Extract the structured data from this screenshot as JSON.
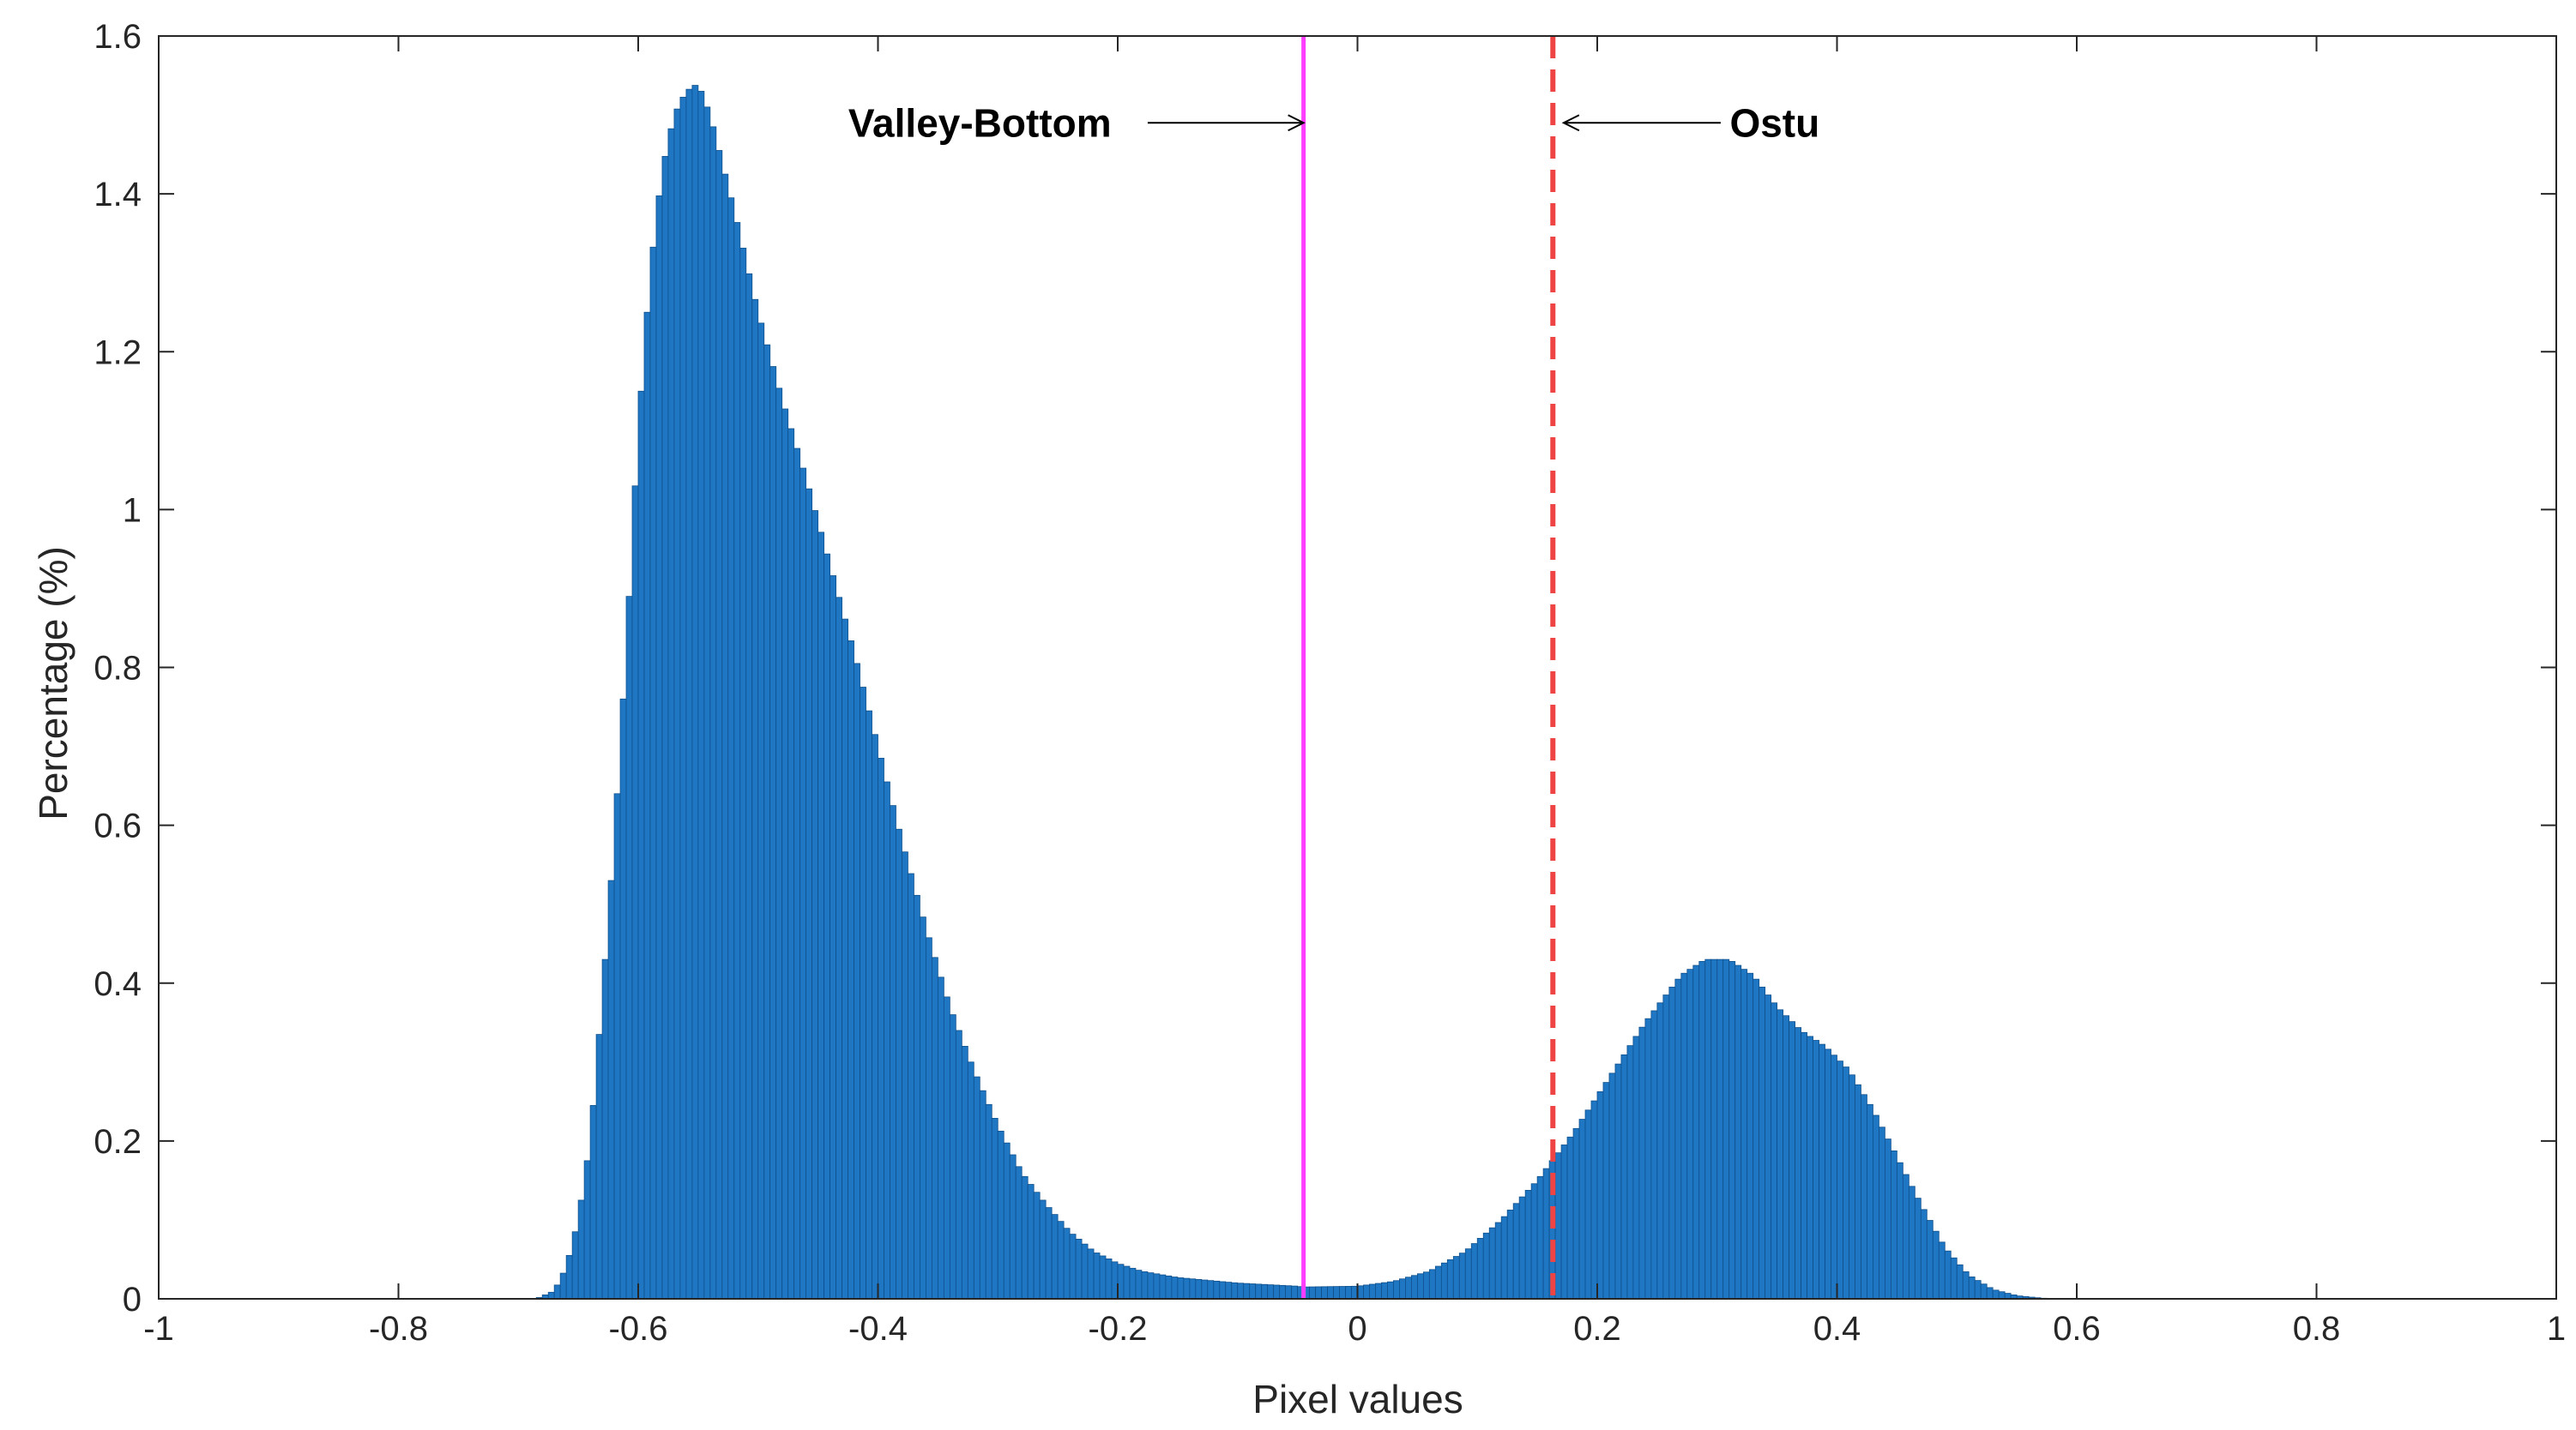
{
  "chart_data": {
    "type": "bar",
    "title": "",
    "xlabel": "Pixel values",
    "ylabel": "Percentage (%)",
    "xlim": [
      -1,
      1
    ],
    "ylim": [
      0,
      1.6
    ],
    "xticks": [
      -1,
      -0.8,
      -0.6,
      -0.4,
      -0.2,
      0,
      0.2,
      0.4,
      0.6,
      0.8,
      1
    ],
    "xtick_labels": [
      "-1",
      "-0.8",
      "-0.6",
      "-0.4",
      "-0.2",
      "0",
      "0.2",
      "0.4",
      "0.6",
      "0.8",
      "1"
    ],
    "yticks": [
      0,
      0.2,
      0.4,
      0.6,
      0.8,
      1,
      1.2,
      1.4,
      1.6
    ],
    "ytick_labels": [
      "0",
      "0.2",
      "0.4",
      "0.6",
      "0.8",
      "1",
      "1.2",
      "1.4",
      "1.6"
    ],
    "grid": false,
    "bar_color": "#1f77c4",
    "bin_width": 0.005,
    "histogram_profile": {
      "x": [
        -0.685,
        -0.67,
        -0.66,
        -0.65,
        -0.64,
        -0.63,
        -0.62,
        -0.61,
        -0.6,
        -0.59,
        -0.58,
        -0.57,
        -0.56,
        -0.55,
        -0.54,
        -0.53,
        -0.52,
        -0.5,
        -0.48,
        -0.46,
        -0.44,
        -0.42,
        -0.4,
        -0.38,
        -0.36,
        -0.34,
        -0.32,
        -0.3,
        -0.28,
        -0.26,
        -0.24,
        -0.22,
        -0.2,
        -0.18,
        -0.15,
        -0.1,
        -0.05,
        -0.045,
        0,
        0.03,
        0.06,
        0.09,
        0.12,
        0.15,
        0.18,
        0.21,
        0.24,
        0.27,
        0.29,
        0.31,
        0.33,
        0.35,
        0.37,
        0.39,
        0.41,
        0.43,
        0.45,
        0.47,
        0.49,
        0.51,
        0.53,
        0.55,
        0.57,
        0.58
      ],
      "y": [
        0.0,
        0.01,
        0.04,
        0.1,
        0.2,
        0.38,
        0.58,
        0.82,
        1.1,
        1.3,
        1.43,
        1.5,
        1.53,
        1.54,
        1.5,
        1.44,
        1.38,
        1.25,
        1.14,
        1.04,
        0.93,
        0.82,
        0.7,
        0.58,
        0.47,
        0.37,
        0.29,
        0.22,
        0.16,
        0.12,
        0.085,
        0.06,
        0.045,
        0.035,
        0.027,
        0.02,
        0.016,
        0.015,
        0.016,
        0.022,
        0.035,
        0.06,
        0.1,
        0.15,
        0.21,
        0.28,
        0.35,
        0.41,
        0.43,
        0.43,
        0.41,
        0.37,
        0.34,
        0.32,
        0.29,
        0.24,
        0.18,
        0.12,
        0.065,
        0.03,
        0.012,
        0.004,
        0.001,
        0.0
      ]
    },
    "lines": [
      {
        "name": "valley",
        "x": -0.045,
        "color": "#ff3dff",
        "style": "solid"
      },
      {
        "name": "otsu",
        "x": 0.163,
        "color": "#ee4444",
        "style": "dashed"
      }
    ],
    "annotations": [
      {
        "text": "Valley-Bottom",
        "text_x": -0.315,
        "arrow_from_x": -0.175,
        "arrow_to_x": -0.045,
        "y": 1.49
      },
      {
        "text": "Ostu",
        "text_x": 0.348,
        "arrow_from_x": 0.303,
        "arrow_to_x": 0.172,
        "y": 1.49
      }
    ]
  }
}
